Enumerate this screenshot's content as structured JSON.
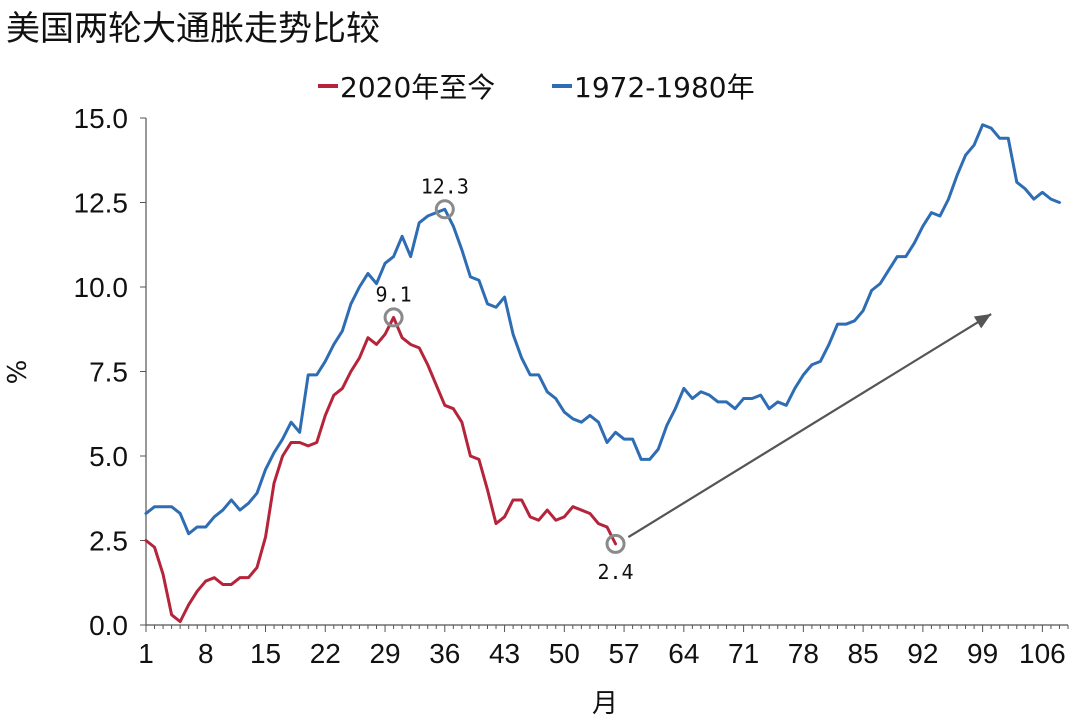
{
  "chart_data": {
    "type": "line",
    "title": "美国两轮大通胀走势比较",
    "xlabel": "月",
    "ylabel": "%",
    "xlim": [
      1,
      109
    ],
    "ylim": [
      0,
      15
    ],
    "x_ticks": [
      1,
      8,
      15,
      22,
      29,
      36,
      43,
      50,
      57,
      64,
      71,
      78,
      85,
      92,
      99,
      106
    ],
    "y_ticks": [
      "0.0",
      "2.5",
      "5.0",
      "7.5",
      "10.0",
      "12.5",
      "15.0"
    ],
    "y_tick_values": [
      0,
      2.5,
      5,
      7.5,
      10,
      12.5,
      15
    ],
    "legend_position": "top",
    "series": [
      {
        "name": "2020年至今",
        "color": "#B5243A",
        "values": [
          2.5,
          2.3,
          1.5,
          0.3,
          0.1,
          0.6,
          1.0,
          1.3,
          1.4,
          1.2,
          1.2,
          1.4,
          1.4,
          1.7,
          2.6,
          4.2,
          5.0,
          5.4,
          5.4,
          5.3,
          5.4,
          6.2,
          6.8,
          7.0,
          7.5,
          7.9,
          8.5,
          8.3,
          8.6,
          9.1,
          8.5,
          8.3,
          8.2,
          7.7,
          7.1,
          6.5,
          6.4,
          6.0,
          5.0,
          4.9,
          4.0,
          3.0,
          3.2,
          3.7,
          3.7,
          3.2,
          3.1,
          3.4,
          3.1,
          3.2,
          3.5,
          3.4,
          3.3,
          3.0,
          2.9,
          2.4
        ]
      },
      {
        "name": "1972-1980年",
        "color": "#2E6DB4",
        "values": [
          3.3,
          3.5,
          3.5,
          3.5,
          3.3,
          2.7,
          2.9,
          2.9,
          3.2,
          3.4,
          3.7,
          3.4,
          3.6,
          3.9,
          4.6,
          5.1,
          5.5,
          6.0,
          5.7,
          7.4,
          7.4,
          7.8,
          8.3,
          8.7,
          9.5,
          10.0,
          10.4,
          10.1,
          10.7,
          10.9,
          11.5,
          10.9,
          11.9,
          12.1,
          12.2,
          12.3,
          11.8,
          11.1,
          10.3,
          10.2,
          9.5,
          9.4,
          9.7,
          8.6,
          7.9,
          7.4,
          7.4,
          6.9,
          6.7,
          6.3,
          6.1,
          6.0,
          6.2,
          6.0,
          5.4,
          5.7,
          5.5,
          5.5,
          4.9,
          4.9,
          5.2,
          5.9,
          6.4,
          7.0,
          6.7,
          6.9,
          6.8,
          6.6,
          6.6,
          6.4,
          6.7,
          6.7,
          6.8,
          6.4,
          6.6,
          6.5,
          7.0,
          7.4,
          7.7,
          7.8,
          8.3,
          8.9,
          8.9,
          9.0,
          9.3,
          9.9,
          10.1,
          10.5,
          10.9,
          10.9,
          11.3,
          11.8,
          12.2,
          12.1,
          12.6,
          13.3,
          13.9,
          14.2,
          14.8,
          14.7,
          14.4,
          14.4,
          13.1,
          12.9,
          12.6,
          12.8,
          12.6,
          12.5
        ]
      }
    ],
    "annotations": [
      {
        "label": "12.3",
        "x": 36,
        "y": 12.3,
        "marker": "circle",
        "label_position": "above"
      },
      {
        "label": "9.1",
        "x": 30,
        "y": 9.1,
        "marker": "circle",
        "label_position": "above"
      },
      {
        "label": "2.4",
        "x": 56,
        "y": 2.4,
        "marker": "circle",
        "label_position": "below"
      }
    ],
    "arrow": {
      "from": [
        57.5,
        2.6
      ],
      "to": [
        100,
        9.2
      ],
      "color": "#555555"
    }
  }
}
